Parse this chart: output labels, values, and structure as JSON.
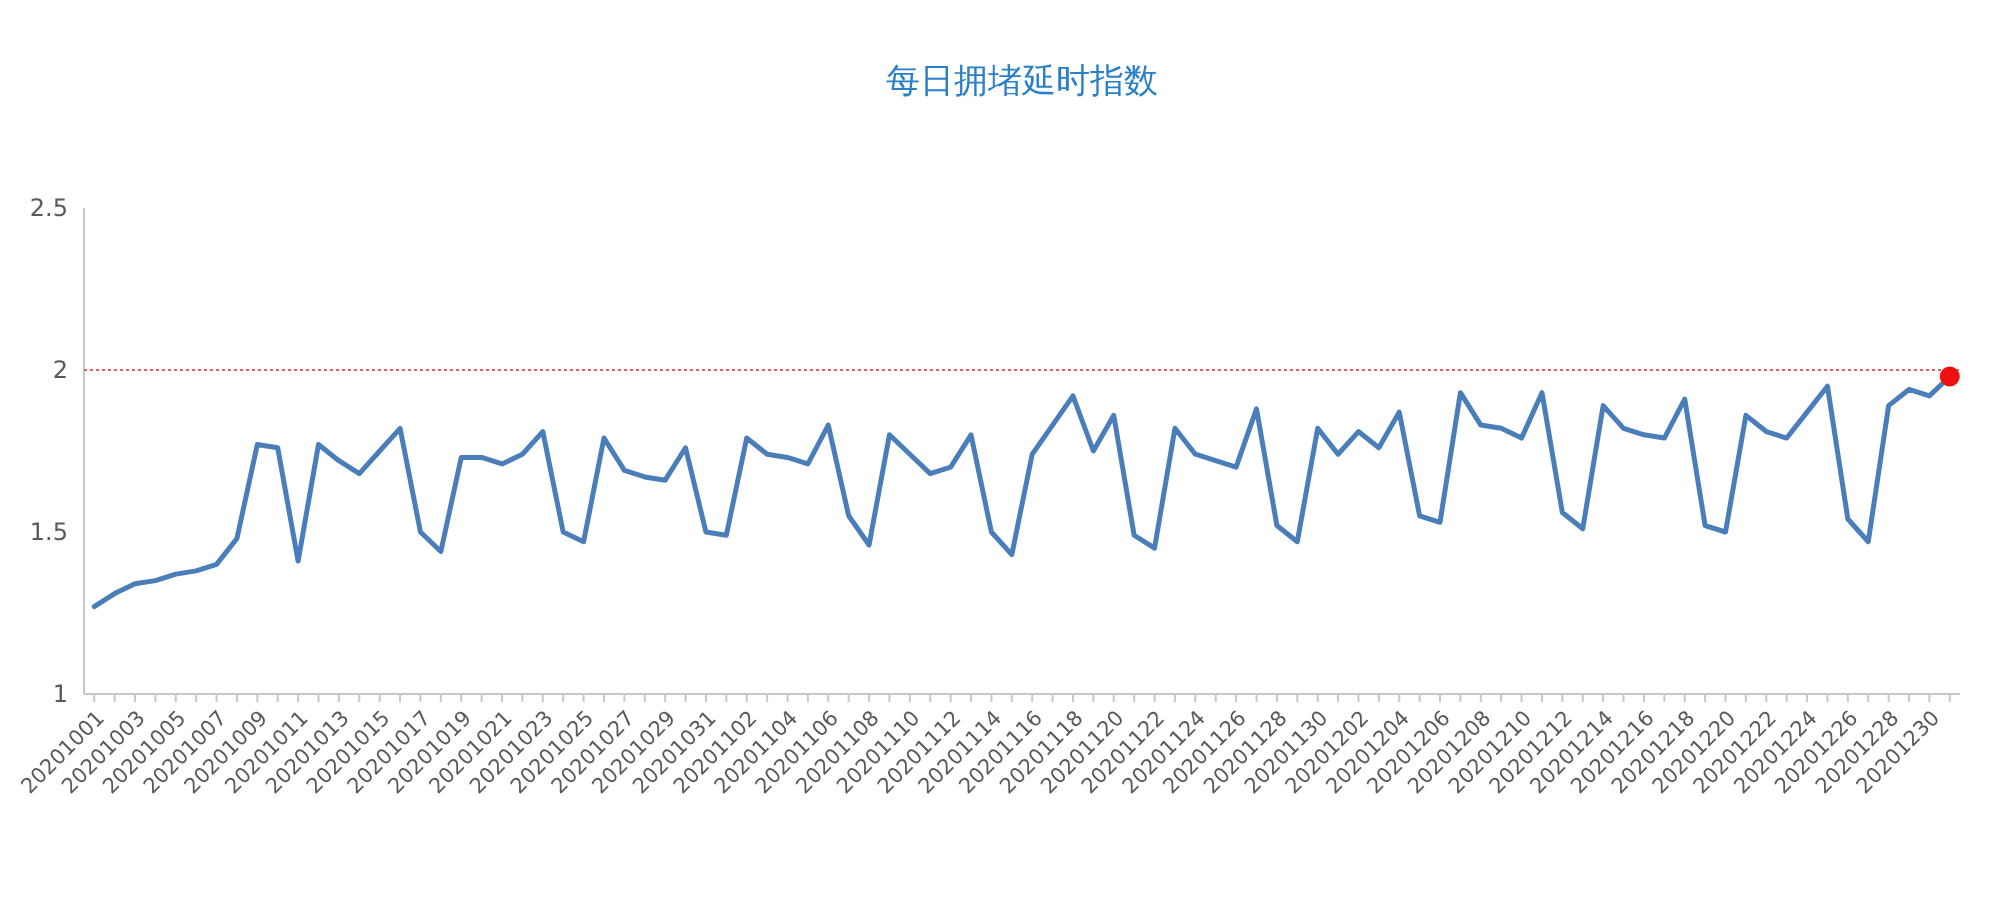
{
  "chart_data": {
    "type": "line",
    "title": "每日拥堵延时指数",
    "categories": [
      "20201001",
      null,
      "20201003",
      null,
      "20201005",
      null,
      "20201007",
      null,
      "20201009",
      null,
      "20201011",
      null,
      "20201013",
      null,
      "20201015",
      null,
      "20201017",
      null,
      "20201019",
      null,
      "20201021",
      null,
      "20201023",
      null,
      "20201025",
      null,
      "20201027",
      null,
      "20201029",
      null,
      "20201031",
      null,
      "20201102",
      null,
      "20201104",
      null,
      "20201106",
      null,
      "20201108",
      null,
      "20201110",
      null,
      "20201112",
      null,
      "20201114",
      null,
      "20201116",
      null,
      "20201118",
      null,
      "20201120",
      null,
      "20201122",
      null,
      "20201124",
      null,
      "20201126",
      null,
      "20201128",
      null,
      "20201130",
      null,
      "20201202",
      null,
      "20201204",
      null,
      "20201206",
      null,
      "20201208",
      null,
      "20201210",
      null,
      "20201212",
      null,
      "20201214",
      null,
      "20201216",
      null,
      "20201218",
      null,
      "20201220",
      null,
      "20201222",
      null,
      "20201224",
      null,
      "20201226",
      null,
      "20201228",
      null,
      "20201230",
      null
    ],
    "series": [
      {
        "color": "#4a7ebb",
        "marker": "none",
        "values": [
          1.27,
          1.31,
          1.34,
          1.35,
          1.37,
          1.38,
          1.4,
          1.48,
          1.77,
          1.76,
          1.41,
          1.77,
          1.72,
          1.68,
          1.75,
          1.82,
          1.5,
          1.44,
          1.73,
          1.73,
          1.71,
          1.74,
          1.81,
          1.5,
          1.47,
          1.79,
          1.69,
          1.67,
          1.66,
          1.76,
          1.5,
          1.49,
          1.79,
          1.74,
          1.73,
          1.71,
          1.83,
          1.55,
          1.46,
          1.8,
          1.74,
          1.68,
          1.7,
          1.8,
          1.5,
          1.43,
          1.74,
          1.83,
          1.92,
          1.75,
          1.86,
          1.49,
          1.45,
          1.82,
          1.74,
          1.72,
          1.7,
          1.88,
          1.52,
          1.47,
          1.82,
          1.74,
          1.81,
          1.76,
          1.87,
          1.55,
          1.53,
          1.93,
          1.83,
          1.82,
          1.79,
          1.93,
          1.56,
          1.51,
          1.89,
          1.82,
          1.8,
          1.79,
          1.91,
          1.52,
          1.5,
          1.86,
          1.81,
          1.79,
          1.87,
          1.95,
          1.54,
          1.47,
          1.89,
          1.94,
          1.92,
          1.98
        ]
      },
      {
        "type": "scatter",
        "color": "#ee1111",
        "marker": "circle",
        "values": [
          null,
          null,
          null,
          null,
          null,
          null,
          null,
          null,
          null,
          null,
          null,
          null,
          null,
          null,
          null,
          null,
          null,
          null,
          null,
          null,
          null,
          null,
          null,
          null,
          null,
          null,
          null,
          null,
          null,
          null,
          null,
          null,
          null,
          null,
          null,
          null,
          null,
          null,
          null,
          null,
          null,
          null,
          null,
          null,
          null,
          null,
          null,
          null,
          null,
          null,
          null,
          null,
          null,
          null,
          null,
          null,
          null,
          null,
          null,
          null,
          null,
          null,
          null,
          null,
          null,
          null,
          null,
          null,
          null,
          null,
          null,
          null,
          null,
          null,
          null,
          null,
          null,
          null,
          null,
          null,
          null,
          null,
          null,
          null,
          null,
          null,
          null,
          null,
          null,
          null,
          null,
          1.98
        ]
      }
    ],
    "ylim": [
      1,
      2.5
    ],
    "yticks": [
      1,
      1.5,
      2,
      2.5
    ],
    "ref_lines": [
      {
        "axis": "y",
        "value": 2,
        "color": "#e06060",
        "line_style": "dotted"
      }
    ],
    "grid": false
  }
}
